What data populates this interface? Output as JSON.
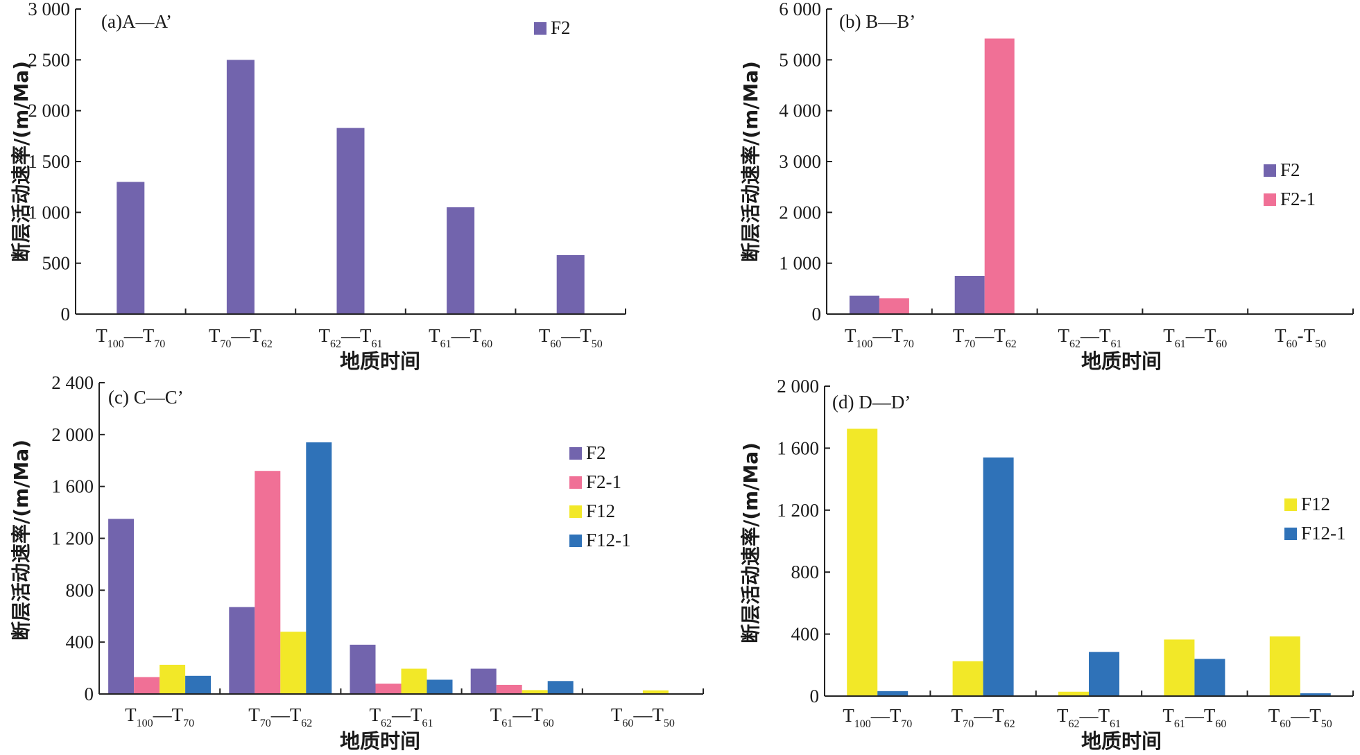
{
  "chart_data": [
    {
      "id": "a",
      "type": "bar",
      "title": "(a)A—A’",
      "xlabel": "地质时间",
      "ylabel": "断层活动速率/(m/Ma)",
      "ylim": [
        0,
        3000
      ],
      "yticks": [
        0,
        500,
        1000,
        1500,
        2000,
        2500,
        3000
      ],
      "ytick_labels": [
        "0",
        "500",
        "1 000",
        "1 500",
        "2 000",
        "2 500",
        "3 000"
      ],
      "categories": [
        {
          "main": "T",
          "sub1": "100",
          "sep": "—",
          "main2": "T",
          "sub2": "70"
        },
        {
          "main": "T",
          "sub1": "70",
          "sep": "—",
          "main2": "T",
          "sub2": "62"
        },
        {
          "main": "T",
          "sub1": "62",
          "sep": "—",
          "main2": "T",
          "sub2": "61"
        },
        {
          "main": "T",
          "sub1": "61",
          "sep": "—",
          "main2": "T",
          "sub2": "60"
        },
        {
          "main": "T",
          "sub1": "60",
          "sep": "—",
          "main2": "T",
          "sub2": "50"
        }
      ],
      "series": [
        {
          "name": "F2",
          "color": "#7264ad",
          "values": [
            1300,
            2500,
            1830,
            1050,
            580
          ]
        }
      ],
      "legend_position": "top-right",
      "grid": false
    },
    {
      "id": "b",
      "type": "bar",
      "title": "(b) B—B’",
      "xlabel": "地质时间",
      "ylabel": "断层活动速率/(m/Ma)",
      "ylim": [
        0,
        6000
      ],
      "yticks": [
        0,
        1000,
        2000,
        3000,
        4000,
        5000,
        6000
      ],
      "ytick_labels": [
        "0",
        "1 000",
        "2 000",
        "3 000",
        "4 000",
        "5 000",
        "6 000"
      ],
      "categories": [
        {
          "main": "T",
          "sub1": "100",
          "sep": "—",
          "main2": "T",
          "sub2": "70"
        },
        {
          "main": "T",
          "sub1": "70",
          "sep": "—",
          "main2": "T",
          "sub2": "62"
        },
        {
          "main": "T",
          "sub1": "62",
          "sep": "—",
          "main2": "T",
          "sub2": "61"
        },
        {
          "main": "T",
          "sub1": "61",
          "sep": "—",
          "main2": "T",
          "sub2": "60"
        },
        {
          "main": "T",
          "sub1": "60",
          "sep": "-",
          "main2": "T",
          "sub2": "50"
        }
      ],
      "series": [
        {
          "name": "F2",
          "color": "#7264ad",
          "values": [
            360,
            750,
            0,
            0,
            0
          ]
        },
        {
          "name": "F2-1",
          "color": "#f07096",
          "values": [
            310,
            5420,
            0,
            0,
            0
          ]
        }
      ],
      "legend_position": "right",
      "grid": false
    },
    {
      "id": "c",
      "type": "bar",
      "title": "(c) C—C’",
      "xlabel": "地质时间",
      "ylabel": "断层活动速率/(m/Ma)",
      "ylim": [
        0,
        2400
      ],
      "yticks": [
        0,
        400,
        800,
        1200,
        1600,
        2000,
        2400
      ],
      "ytick_labels": [
        "0",
        "400",
        "800",
        "1 200",
        "1 600",
        "2 000",
        "2 400"
      ],
      "categories": [
        {
          "main": "T",
          "sub1": "100",
          "sep": "—",
          "main2": "T",
          "sub2": "70"
        },
        {
          "main": "T",
          "sub1": "70",
          "sep": "—",
          "main2": "T",
          "sub2": "62"
        },
        {
          "main": "T",
          "sub1": "62",
          "sep": "—",
          "main2": "T",
          "sub2": "61"
        },
        {
          "main": "T",
          "sub1": "61",
          "sep": "—",
          "main2": "T",
          "sub2": "60"
        },
        {
          "main": "T",
          "sub1": "60",
          "sep": "—",
          "main2": "T",
          "sub2": "50"
        }
      ],
      "series": [
        {
          "name": "F2",
          "color": "#7264ad",
          "values": [
            1350,
            670,
            380,
            195,
            0
          ]
        },
        {
          "name": "F2-1",
          "color": "#f07096",
          "values": [
            130,
            1720,
            80,
            70,
            0
          ]
        },
        {
          "name": "F12",
          "color": "#f2e828",
          "values": [
            225,
            480,
            195,
            30,
            28
          ]
        },
        {
          "name": "F12-1",
          "color": "#2f72b8",
          "values": [
            140,
            1940,
            110,
            100,
            0
          ]
        }
      ],
      "legend_position": "right",
      "grid": false
    },
    {
      "id": "d",
      "type": "bar",
      "title": "(d) D—D’",
      "xlabel": "地质时间",
      "ylabel": "断层活动速率/(m/Ma)",
      "ylim": [
        0,
        2000
      ],
      "yticks": [
        0,
        400,
        800,
        1200,
        1600,
        2000
      ],
      "ytick_labels": [
        "0",
        "400",
        "800",
        "1 200",
        "1 600",
        "2 000"
      ],
      "categories": [
        {
          "main": "T",
          "sub1": "100",
          "sep": "—",
          "main2": "T",
          "sub2": "70"
        },
        {
          "main": "T",
          "sub1": "70",
          "sep": "—",
          "main2": "T",
          "sub2": "62"
        },
        {
          "main": "T",
          "sub1": "62",
          "sep": "—",
          "main2": "T",
          "sub2": "61"
        },
        {
          "main": "T",
          "sub1": "61",
          "sep": "—",
          "main2": "T",
          "sub2": "60"
        },
        {
          "main": "T",
          "sub1": "60",
          "sep": "—",
          "main2": "T",
          "sub2": "50"
        }
      ],
      "series": [
        {
          "name": "F12",
          "color": "#f2e828",
          "values": [
            1725,
            225,
            28,
            365,
            385
          ]
        },
        {
          "name": "F12-1",
          "color": "#2f72b8",
          "values": [
            32,
            1540,
            285,
            240,
            18
          ]
        }
      ],
      "legend_position": "right",
      "grid": false
    }
  ]
}
